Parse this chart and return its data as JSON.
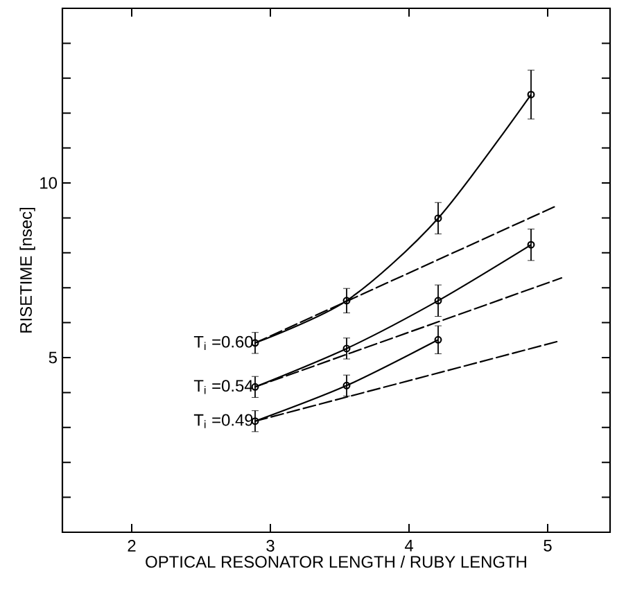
{
  "chart_data": {
    "type": "line",
    "xlabel": "OPTICAL RESONATOR LENGTH / RUBY LENGTH",
    "ylabel": "RISETIME [nsec]",
    "xlim": [
      1.5,
      5.45
    ],
    "ylim": [
      0,
      15
    ],
    "xticks": [
      2,
      3,
      4,
      5
    ],
    "yticks": [
      {
        "value": 1,
        "label": null
      },
      {
        "value": 2,
        "label": null
      },
      {
        "value": 3,
        "label": null
      },
      {
        "value": 4,
        "label": null
      },
      5,
      {
        "value": 6,
        "label": null
      },
      {
        "value": 7,
        "label": null
      },
      {
        "value": 8,
        "label": null
      },
      {
        "value": 9,
        "label": null
      },
      10,
      {
        "value": 11,
        "label": null
      },
      {
        "value": 12,
        "label": null
      },
      {
        "value": 13,
        "label": null
      },
      {
        "value": 14,
        "label": null
      }
    ],
    "grid": false,
    "series": [
      {
        "name": "T$_{i}$ =0.60",
        "color": "#000000",
        "marker": "circle",
        "line_style": "solid",
        "x": [
          2.89,
          3.55,
          4.21,
          4.88
        ],
        "values": [
          5.42,
          6.63,
          8.99,
          12.53
        ],
        "errors": [
          0.3,
          0.35,
          0.45,
          0.7
        ]
      },
      {
        "name": "T$_{i}$ =0.54",
        "color": "#000000",
        "marker": "circle",
        "line_style": "solid",
        "x": [
          2.89,
          3.55,
          4.21,
          4.88
        ],
        "values": [
          4.16,
          5.26,
          6.63,
          8.23
        ],
        "errors": [
          0.3,
          0.3,
          0.45,
          0.45
        ]
      },
      {
        "name": "T$_{i}$ =0.49",
        "color": "#000000",
        "marker": "circle",
        "line_style": "solid",
        "x": [
          2.89,
          3.55,
          4.21
        ],
        "values": [
          3.18,
          4.2,
          5.51
        ],
        "errors": [
          0.3,
          0.3,
          0.4
        ]
      },
      {
        "color": "#000000",
        "marker": "none",
        "line_style": "dashed",
        "x": [
          2.89,
          5.05
        ],
        "values": [
          5.42,
          9.32
        ]
      },
      {
        "color": "#000000",
        "marker": "none",
        "line_style": "dashed",
        "x": [
          2.89,
          5.1
        ],
        "values": [
          4.16,
          7.28
        ]
      },
      {
        "color": "#000000",
        "marker": "none",
        "line_style": "dashed",
        "x": [
          2.89,
          5.08
        ],
        "values": [
          3.18,
          5.47
        ]
      }
    ]
  }
}
